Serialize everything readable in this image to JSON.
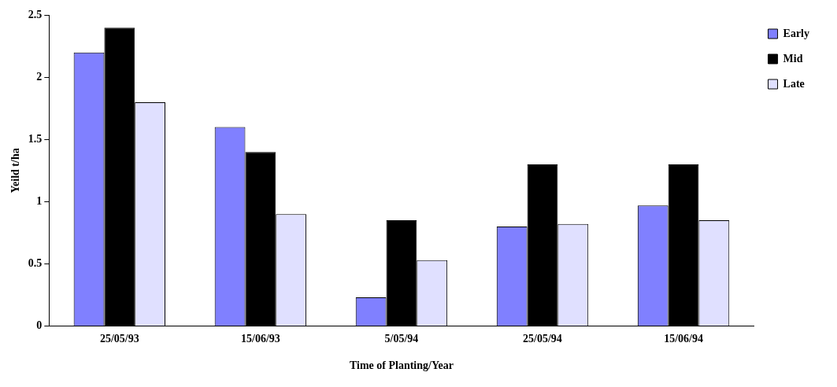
{
  "chart_data": {
    "type": "bar",
    "xlabel": "Time of Planting/Year",
    "ylabel": "Yeild t/ha",
    "categories": [
      "25/05/93",
      "15/06/93",
      "5/05/94",
      "25/05/94",
      "15/06/94"
    ],
    "series": [
      {
        "name": "Early",
        "color": "#8080ff",
        "values": [
          2.2,
          1.6,
          0.23,
          0.8,
          0.97
        ]
      },
      {
        "name": "Mid",
        "color": "#000000",
        "values": [
          2.4,
          1.4,
          0.85,
          1.3,
          1.3
        ]
      },
      {
        "name": "Late",
        "color": "#e0e0ff",
        "values": [
          1.8,
          0.9,
          0.53,
          0.82,
          0.85
        ]
      }
    ],
    "ylim": [
      0,
      2.5
    ],
    "yticks": [
      0,
      0.5,
      1,
      1.5,
      2,
      2.5
    ],
    "grid": false,
    "legend": "top right"
  }
}
